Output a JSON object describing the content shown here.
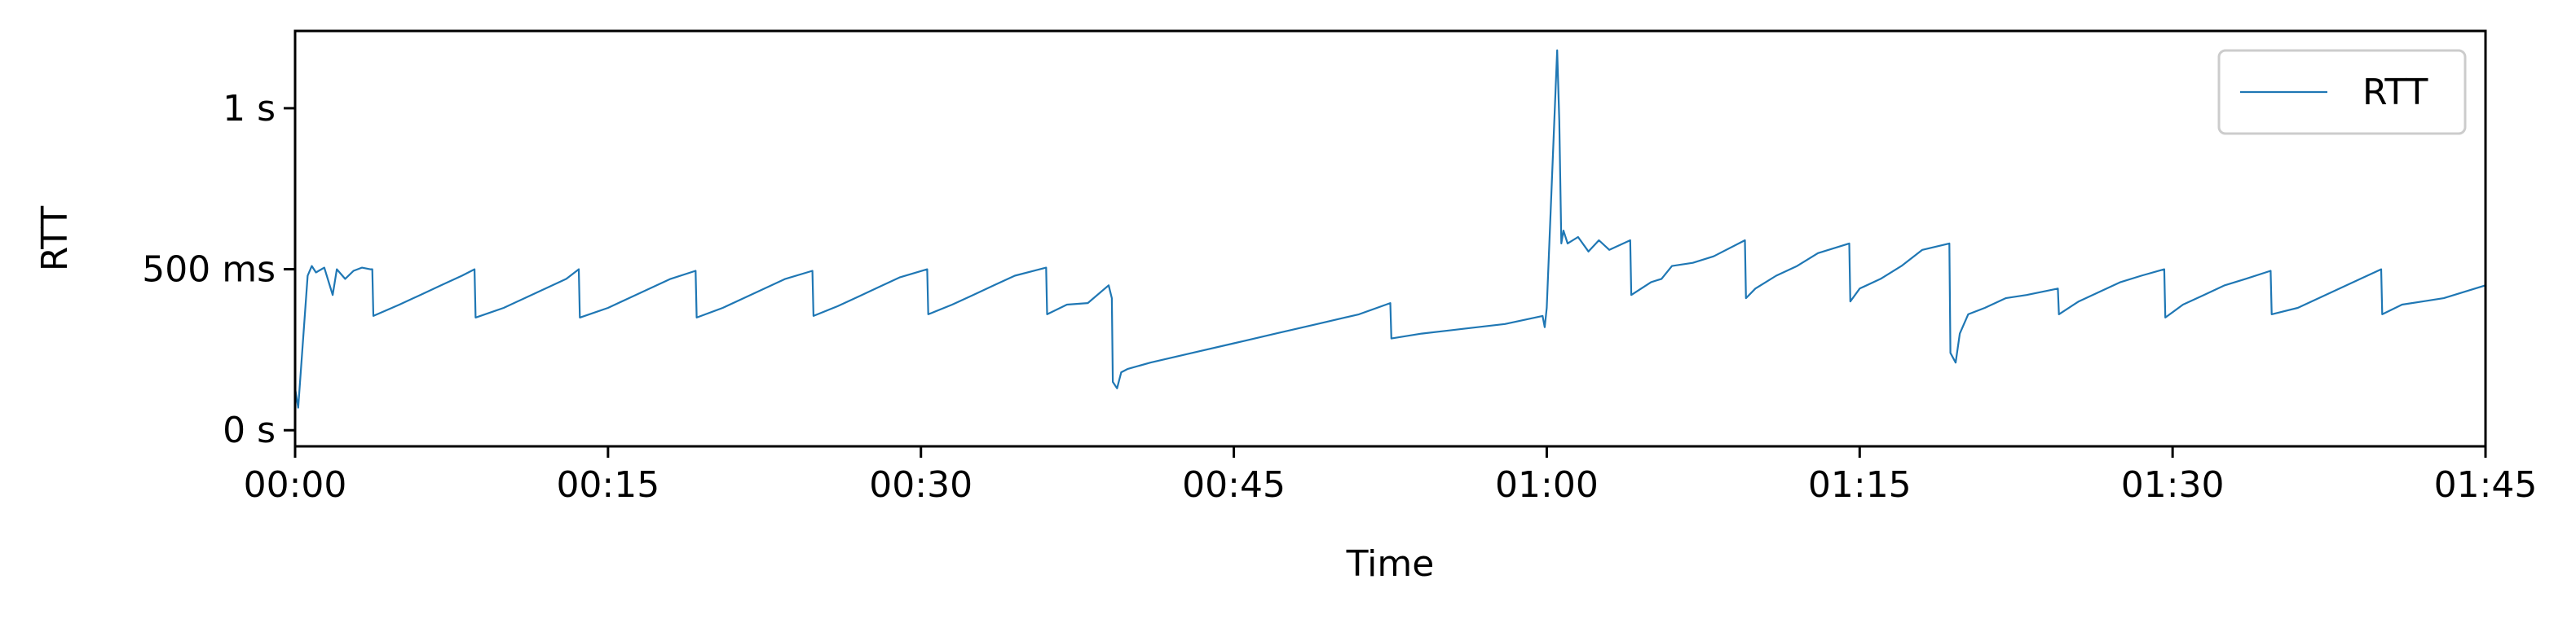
{
  "chart_data": {
    "type": "line",
    "title": "",
    "xlabel": "Time",
    "ylabel": "RTT",
    "x_unit": "seconds",
    "y_unit": "ms",
    "xlim": [
      0,
      105
    ],
    "ylim": [
      -50,
      1240
    ],
    "x_ticks": [
      {
        "value": 0,
        "label": "00:00"
      },
      {
        "value": 15,
        "label": "00:15"
      },
      {
        "value": 30,
        "label": "00:30"
      },
      {
        "value": 45,
        "label": "00:45"
      },
      {
        "value": 60,
        "label": "01:00"
      },
      {
        "value": 75,
        "label": "01:15"
      },
      {
        "value": 90,
        "label": "01:30"
      },
      {
        "value": 105,
        "label": "01:45"
      }
    ],
    "y_ticks": [
      {
        "value": 0,
        "label": "0 s"
      },
      {
        "value": 500,
        "label": "500 ms"
      },
      {
        "value": 1000,
        "label": "1 s"
      }
    ],
    "grid": false,
    "legend_position": "top-right",
    "series": [
      {
        "name": "RTT",
        "color": "#1f77b4",
        "x": [
          0,
          0.15,
          0.6,
          0.8,
          1.0,
          1.4,
          1.8,
          2.0,
          2.4,
          2.8,
          3.2,
          3.6,
          3.7,
          3.75,
          5,
          6,
          7,
          8,
          8.6,
          8.65,
          10,
          11,
          12,
          13,
          13.6,
          13.65,
          15,
          16,
          17,
          18,
          19.2,
          19.25,
          20.5,
          21.5,
          22.5,
          23.5,
          24.8,
          24.85,
          26,
          27,
          28,
          29,
          30.3,
          30.35,
          31.5,
          32.5,
          33.5,
          34.5,
          36.0,
          36.05,
          37,
          38,
          39.0,
          39.15,
          39.2,
          39.4,
          39.6,
          39.9,
          41,
          43,
          45,
          47,
          49,
          51,
          52.5,
          52.55,
          54,
          56,
          58,
          59.8,
          59.9,
          60.0,
          60.5,
          60.6,
          60.7,
          60.8,
          61,
          61.5,
          62,
          62.5,
          63,
          63.5,
          64.0,
          64.05,
          65,
          65.5,
          66,
          67,
          68,
          69.5,
          69.55,
          70,
          71,
          72,
          73,
          74.5,
          74.55,
          75,
          76,
          77,
          78,
          79.3,
          79.35,
          79.6,
          79.8,
          80.2,
          81,
          82,
          83,
          84.5,
          84.55,
          85.5,
          86.5,
          87.5,
          88.5,
          89.6,
          89.65,
          90.5,
          91.5,
          92.5,
          93.5,
          94.7,
          94.75,
          96,
          97,
          98,
          99,
          100.0,
          100.05,
          101,
          102,
          103,
          104,
          105
        ],
        "y": [
          130,
          70,
          480,
          510,
          490,
          505,
          420,
          500,
          470,
          495,
          505,
          500,
          500,
          355,
          390,
          420,
          450,
          480,
          500,
          350,
          380,
          410,
          440,
          470,
          500,
          350,
          380,
          410,
          440,
          470,
          495,
          350,
          380,
          410,
          440,
          470,
          495,
          355,
          385,
          415,
          445,
          475,
          500,
          360,
          390,
          420,
          450,
          480,
          505,
          360,
          390,
          395,
          450,
          410,
          150,
          130,
          180,
          190,
          210,
          240,
          270,
          300,
          330,
          360,
          395,
          285,
          300,
          315,
          330,
          355,
          320,
          380,
          1180,
          960,
          580,
          620,
          580,
          600,
          555,
          590,
          560,
          575,
          590,
          420,
          460,
          470,
          510,
          520,
          540,
          590,
          410,
          440,
          480,
          510,
          550,
          580,
          400,
          440,
          470,
          510,
          560,
          580,
          240,
          210,
          300,
          360,
          380,
          410,
          420,
          440,
          360,
          400,
          430,
          460,
          480,
          500,
          350,
          390,
          420,
          450,
          470,
          495,
          360,
          380,
          410,
          440,
          470,
          500,
          360,
          390,
          400,
          410,
          430,
          450
        ]
      }
    ]
  }
}
